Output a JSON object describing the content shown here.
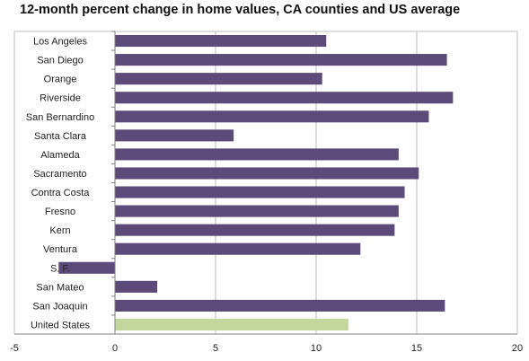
{
  "chart_data": {
    "type": "bar",
    "orientation": "horizontal",
    "title": "12-month percent change in home values, CA counties and US average",
    "xlabel": "",
    "ylabel": "",
    "xlim": [
      -5,
      20
    ],
    "x_ticks": [
      "-5",
      "0",
      "5",
      "10",
      "15",
      "20"
    ],
    "grid": "vertical gridlines",
    "legend": "none",
    "categories": [
      "Los Angeles",
      "San Diego",
      "Orange",
      "Riverside",
      "San Bernardino",
      "Santa Clara",
      "Alameda",
      "Sacramento",
      "Contra Costa",
      "Fresno",
      "Kern",
      "Ventura",
      "S. F.",
      "San Mateo",
      "San Joaquin",
      "United States"
    ],
    "values": [
      10.5,
      16.5,
      10.3,
      16.8,
      15.6,
      5.9,
      14.1,
      15.1,
      14.4,
      14.1,
      13.9,
      12.2,
      -2.8,
      2.1,
      16.4,
      11.6
    ],
    "colors": {
      "default_bar": "#5b4a7a",
      "highlight_bar": "#c3d69b",
      "grid": "#bfbfbf",
      "axis": "#808080"
    },
    "highlight_category": "United States"
  }
}
